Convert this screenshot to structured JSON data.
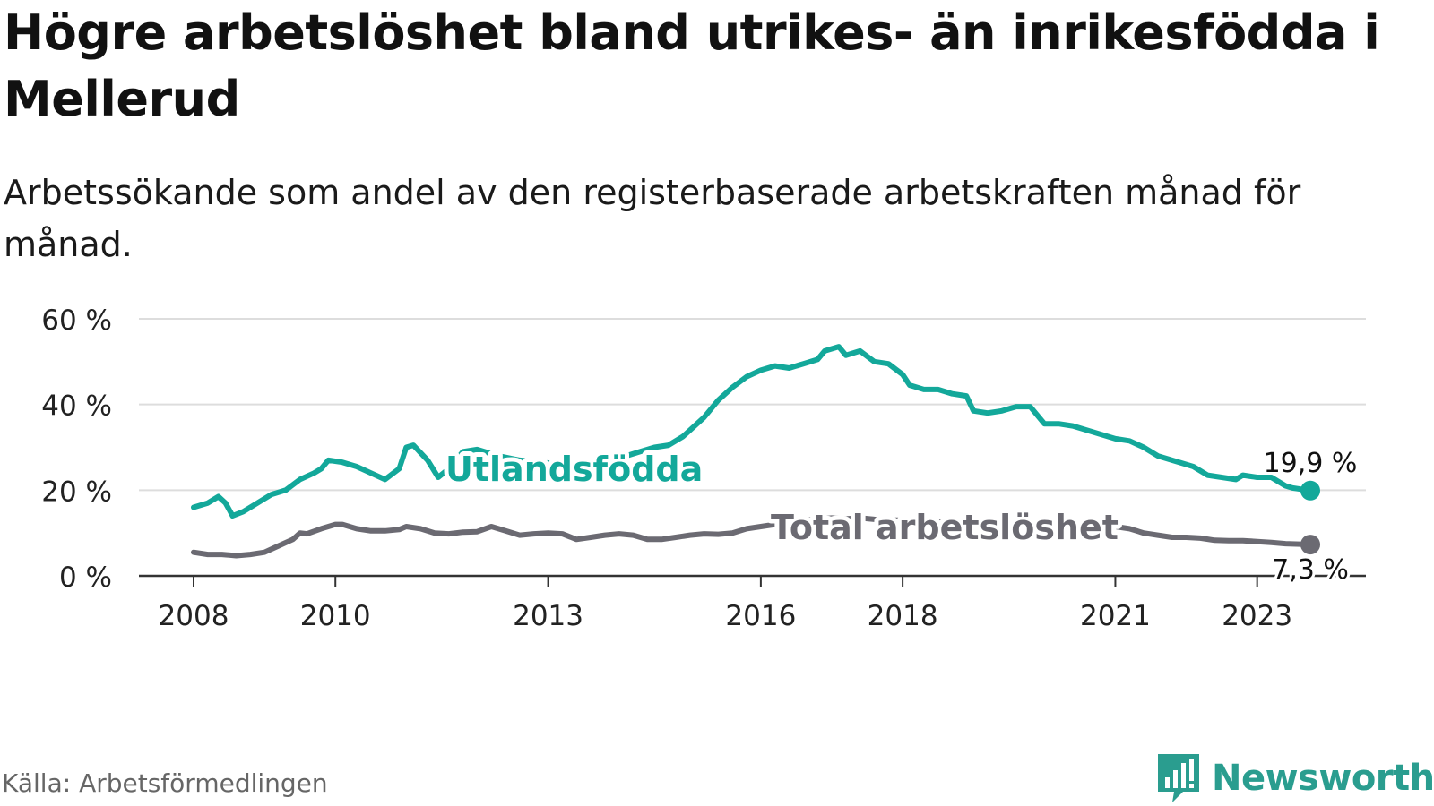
{
  "header": {
    "title": "Högre arbetslöshet bland utrikes- än inrikesfödda i Mellerud",
    "subtitle": "Arbetssökande som andel av den registerbaserade arbetskraften månad för månad."
  },
  "footer": {
    "source": "Källa: Arbetsförmedlingen",
    "brand": "Newsworthy"
  },
  "colors": {
    "foreign": "#13a89a",
    "total": "#6b6a72",
    "grid": "#dddddd",
    "axis": "#333333"
  },
  "chart_data": {
    "type": "line",
    "title": "Högre arbetslöshet bland utrikes- än inrikesfödda i Mellerud",
    "xlabel": "",
    "ylabel": "",
    "xlim": [
      2008.0,
      2023.75
    ],
    "ylim": [
      0,
      60
    ],
    "yticks": [
      0,
      20,
      40,
      60
    ],
    "ytick_labels": [
      "0 %",
      "20 %",
      "40 %",
      "60 %"
    ],
    "xticks": [
      2008,
      2010,
      2013,
      2016,
      2018,
      2021,
      2023
    ],
    "xtick_labels": [
      "2008",
      "2010",
      "2013",
      "2016",
      "2018",
      "2021",
      "2023"
    ],
    "grid": true,
    "series": [
      {
        "name": "Utlandsfödda",
        "end_label": "19,9 %",
        "points": [
          [
            2008.0,
            16
          ],
          [
            2008.2,
            17
          ],
          [
            2008.35,
            18.5
          ],
          [
            2008.45,
            17
          ],
          [
            2008.55,
            14
          ],
          [
            2008.7,
            15
          ],
          [
            2008.9,
            17
          ],
          [
            2009.1,
            19
          ],
          [
            2009.3,
            20
          ],
          [
            2009.5,
            22.5
          ],
          [
            2009.7,
            24
          ],
          [
            2009.8,
            25
          ],
          [
            2009.9,
            27
          ],
          [
            2010.1,
            26.5
          ],
          [
            2010.3,
            25.5
          ],
          [
            2010.5,
            24
          ],
          [
            2010.7,
            22.5
          ],
          [
            2010.9,
            25
          ],
          [
            2011.0,
            30
          ],
          [
            2011.1,
            30.5
          ],
          [
            2011.3,
            27
          ],
          [
            2011.45,
            23
          ],
          [
            2011.6,
            25
          ],
          [
            2011.8,
            29
          ],
          [
            2012.0,
            29.5
          ],
          [
            2012.3,
            28
          ],
          [
            2012.6,
            27
          ],
          [
            2012.9,
            26.5
          ],
          [
            2013.2,
            26
          ],
          [
            2013.5,
            25.5
          ],
          [
            2013.8,
            26.5
          ],
          [
            2014.1,
            28
          ],
          [
            2014.3,
            29
          ],
          [
            2014.5,
            30
          ],
          [
            2014.7,
            30.5
          ],
          [
            2014.9,
            32.5
          ],
          [
            2015.0,
            34
          ],
          [
            2015.2,
            37
          ],
          [
            2015.4,
            41
          ],
          [
            2015.6,
            44
          ],
          [
            2015.8,
            46.5
          ],
          [
            2016.0,
            48
          ],
          [
            2016.2,
            49
          ],
          [
            2016.4,
            48.5
          ],
          [
            2016.6,
            49.5
          ],
          [
            2016.8,
            50.5
          ],
          [
            2016.9,
            52.5
          ],
          [
            2017.1,
            53.5
          ],
          [
            2017.2,
            51.5
          ],
          [
            2017.4,
            52.5
          ],
          [
            2017.6,
            50
          ],
          [
            2017.8,
            49.5
          ],
          [
            2018.0,
            47
          ],
          [
            2018.1,
            44.5
          ],
          [
            2018.3,
            43.5
          ],
          [
            2018.5,
            43.5
          ],
          [
            2018.7,
            42.5
          ],
          [
            2018.9,
            42
          ],
          [
            2019.0,
            38.5
          ],
          [
            2019.2,
            38
          ],
          [
            2019.4,
            38.5
          ],
          [
            2019.6,
            39.5
          ],
          [
            2019.8,
            39.5
          ],
          [
            2020.0,
            35.5
          ],
          [
            2020.2,
            35.5
          ],
          [
            2020.4,
            35
          ],
          [
            2020.6,
            34
          ],
          [
            2020.8,
            33
          ],
          [
            2021.0,
            32
          ],
          [
            2021.2,
            31.5
          ],
          [
            2021.4,
            30
          ],
          [
            2021.6,
            28
          ],
          [
            2021.8,
            27
          ],
          [
            2022.0,
            26
          ],
          [
            2022.1,
            25.5
          ],
          [
            2022.3,
            23.5
          ],
          [
            2022.5,
            23
          ],
          [
            2022.7,
            22.5
          ],
          [
            2022.8,
            23.5
          ],
          [
            2023.0,
            23
          ],
          [
            2023.2,
            23
          ],
          [
            2023.4,
            21
          ],
          [
            2023.5,
            20.5
          ],
          [
            2023.75,
            19.9
          ]
        ]
      },
      {
        "name": "Total arbetslöshet",
        "end_label": "7,3 %",
        "points": [
          [
            2008.0,
            5.5
          ],
          [
            2008.2,
            5
          ],
          [
            2008.4,
            5
          ],
          [
            2008.6,
            4.7
          ],
          [
            2008.8,
            5
          ],
          [
            2009.0,
            5.5
          ],
          [
            2009.2,
            7
          ],
          [
            2009.4,
            8.5
          ],
          [
            2009.5,
            10
          ],
          [
            2009.6,
            9.8
          ],
          [
            2009.8,
            11
          ],
          [
            2010.0,
            12
          ],
          [
            2010.1,
            12
          ],
          [
            2010.3,
            11
          ],
          [
            2010.5,
            10.5
          ],
          [
            2010.7,
            10.5
          ],
          [
            2010.9,
            10.8
          ],
          [
            2011.0,
            11.5
          ],
          [
            2011.2,
            11
          ],
          [
            2011.4,
            10
          ],
          [
            2011.6,
            9.8
          ],
          [
            2011.8,
            10.2
          ],
          [
            2012.0,
            10.3
          ],
          [
            2012.2,
            11.5
          ],
          [
            2012.4,
            10.5
          ],
          [
            2012.6,
            9.5
          ],
          [
            2012.8,
            9.8
          ],
          [
            2013.0,
            10
          ],
          [
            2013.2,
            9.8
          ],
          [
            2013.4,
            8.5
          ],
          [
            2013.6,
            9
          ],
          [
            2013.8,
            9.5
          ],
          [
            2014.0,
            9.8
          ],
          [
            2014.2,
            9.5
          ],
          [
            2014.4,
            8.5
          ],
          [
            2014.6,
            8.5
          ],
          [
            2014.8,
            9
          ],
          [
            2015.0,
            9.5
          ],
          [
            2015.2,
            9.8
          ],
          [
            2015.4,
            9.7
          ],
          [
            2015.6,
            10
          ],
          [
            2015.8,
            11
          ],
          [
            2016.0,
            11.5
          ],
          [
            2016.2,
            12
          ],
          [
            2016.4,
            12.5
          ],
          [
            2016.6,
            13
          ],
          [
            2016.8,
            13.2
          ],
          [
            2017.0,
            13.5
          ],
          [
            2017.2,
            13.3
          ],
          [
            2017.4,
            13.5
          ],
          [
            2017.6,
            13.2
          ],
          [
            2017.8,
            13
          ],
          [
            2018.0,
            13
          ],
          [
            2018.3,
            12.8
          ],
          [
            2018.6,
            12.5
          ],
          [
            2018.9,
            12.5
          ],
          [
            2019.2,
            12.3
          ],
          [
            2019.5,
            12.2
          ],
          [
            2019.8,
            12
          ],
          [
            2020.0,
            11.8
          ],
          [
            2020.3,
            11.5
          ],
          [
            2020.6,
            11.5
          ],
          [
            2020.9,
            11.3
          ],
          [
            2021.0,
            11.5
          ],
          [
            2021.2,
            11
          ],
          [
            2021.4,
            10
          ],
          [
            2021.6,
            9.5
          ],
          [
            2021.8,
            9
          ],
          [
            2022.0,
            9
          ],
          [
            2022.2,
            8.8
          ],
          [
            2022.4,
            8.3
          ],
          [
            2022.6,
            8.2
          ],
          [
            2022.8,
            8.2
          ],
          [
            2023.0,
            8
          ],
          [
            2023.2,
            7.8
          ],
          [
            2023.4,
            7.5
          ],
          [
            2023.6,
            7.4
          ],
          [
            2023.75,
            7.3
          ]
        ]
      }
    ]
  }
}
